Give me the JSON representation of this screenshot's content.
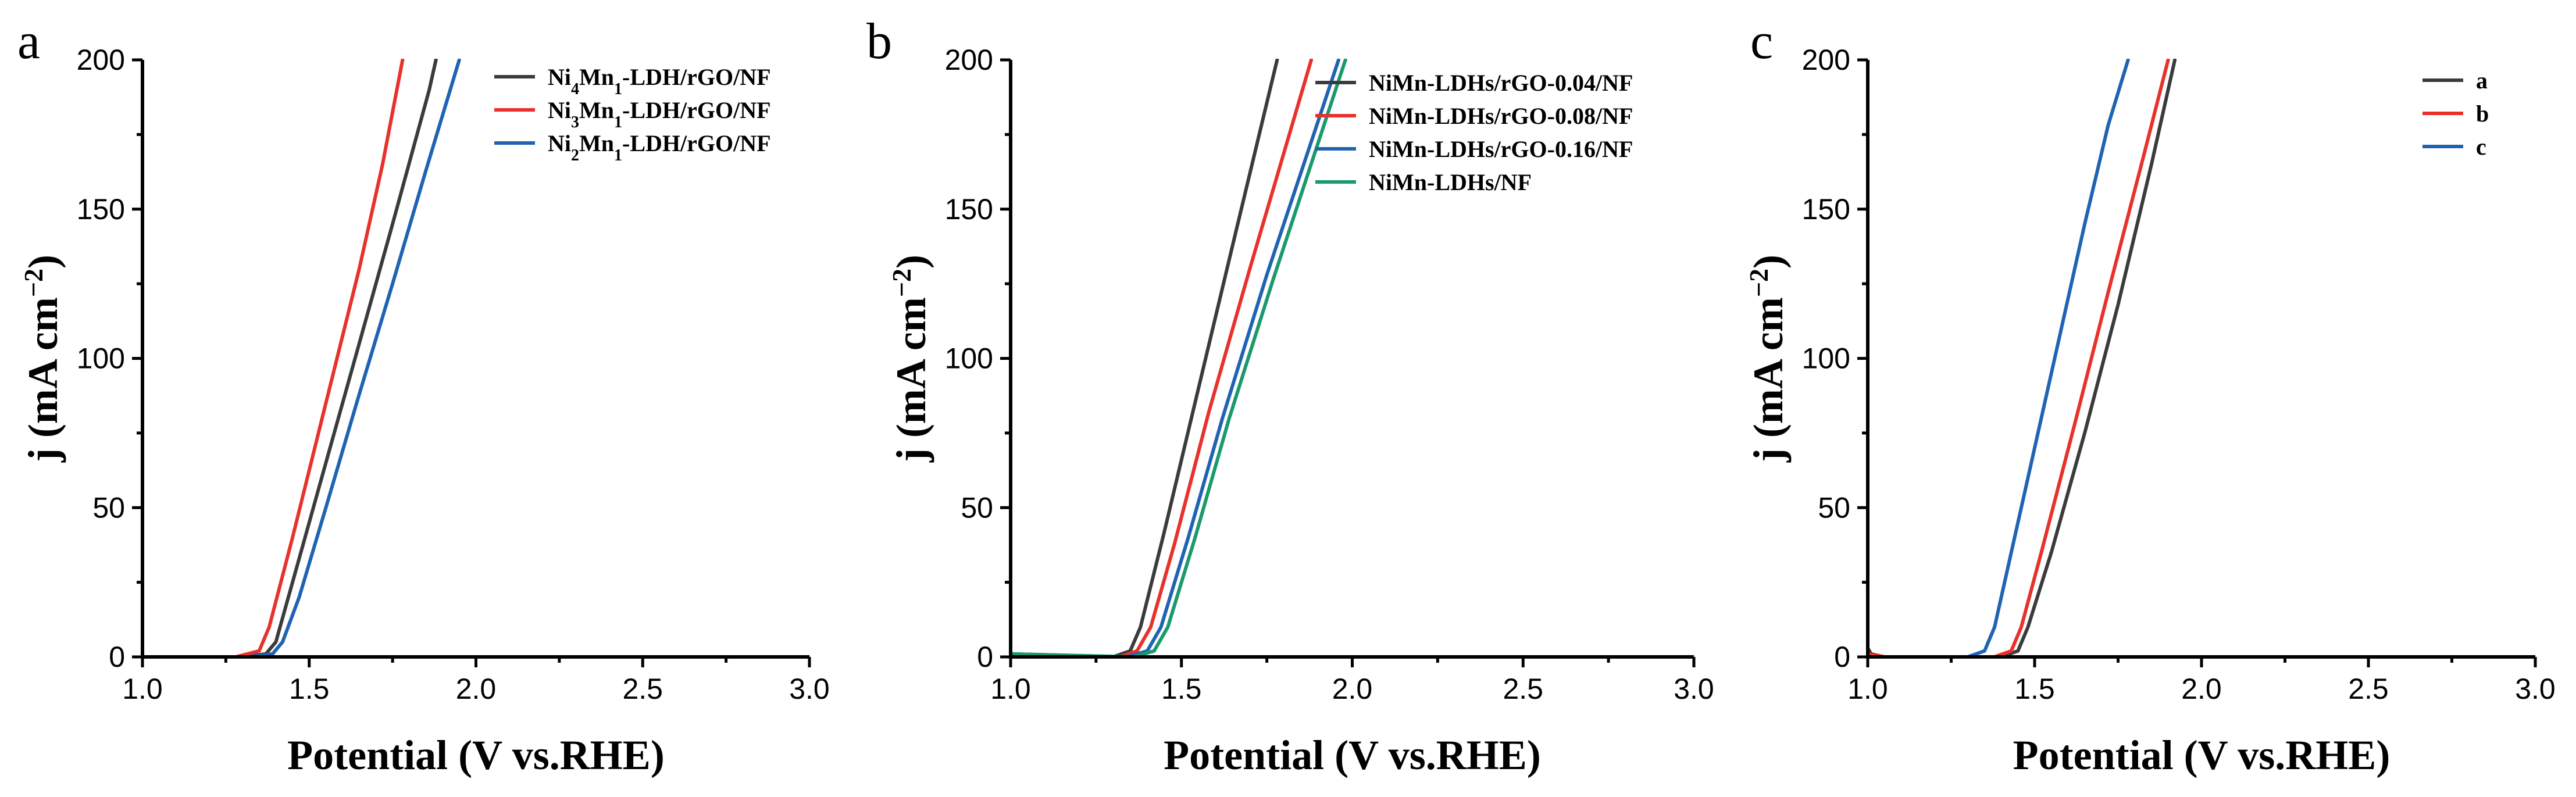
{
  "chart_data": [
    {
      "type": "line",
      "panel_label": "a",
      "xlabel": "Potential (V vs.RHE)",
      "ylabel": "j (mA cm",
      "ylabel_sup": "−2",
      "ylabel_close": ")",
      "xlim": [
        1.0,
        3.0
      ],
      "ylim": [
        0,
        200
      ],
      "xticks": [
        "1.0",
        "1.5",
        "2.0",
        "2.5",
        "3.0"
      ],
      "yticks": [
        "0",
        "50",
        "100",
        "150",
        "200"
      ],
      "legend_position": "top-right",
      "series": [
        {
          "name": "Ni4Mn1-LDH/rGO/NF",
          "label_parts": [
            "Ni",
            "4",
            "Mn",
            "1",
            "-LDH/rGO/NF"
          ],
          "color": "#3b3b3b",
          "x": [
            1.0,
            1.3,
            1.37,
            1.4,
            1.45,
            1.55,
            1.65,
            1.75,
            1.86,
            1.88
          ],
          "y": [
            0,
            0,
            1,
            5,
            25,
            65,
            105,
            145,
            190,
            200
          ]
        },
        {
          "name": "Ni3Mn1-LDH/rGO/NF",
          "label_parts": [
            "Ni",
            "3",
            "Mn",
            "1",
            "-LDH/rGO/NF"
          ],
          "color": "#e8312a",
          "x": [
            1.0,
            1.28,
            1.35,
            1.38,
            1.45,
            1.55,
            1.65,
            1.72,
            1.78
          ],
          "y": [
            0,
            0,
            2,
            10,
            40,
            85,
            130,
            165,
            200
          ]
        },
        {
          "name": "Ni2Mn1-LDH/rGO/NF",
          "label_parts": [
            "Ni",
            "2",
            "Mn",
            "1",
            "-LDH/rGO/NF"
          ],
          "color": "#1f63b3",
          "x": [
            1.0,
            1.32,
            1.39,
            1.42,
            1.47,
            1.55,
            1.65,
            1.75,
            1.85,
            1.95
          ],
          "y": [
            0,
            0,
            1,
            5,
            20,
            50,
            88,
            125,
            163,
            200
          ]
        }
      ]
    },
    {
      "type": "line",
      "panel_label": "b",
      "xlabel": "Potential (V vs.RHE)",
      "ylabel": "j (mA cm",
      "ylabel_sup": "−2",
      "ylabel_close": ")",
      "xlim": [
        1.0,
        3.0
      ],
      "ylim": [
        0,
        200
      ],
      "xticks": [
        "1.0",
        "1.5",
        "2.0",
        "2.5",
        "3.0"
      ],
      "yticks": [
        "0",
        "50",
        "100",
        "150",
        "200"
      ],
      "legend_position": "top-right",
      "series": [
        {
          "name": "NiMn-LDHs/rGO-0.04/NF",
          "label_parts": [
            "NiMn-LDHs/rGO-0.04/NF"
          ],
          "color": "#3b3b3b",
          "x": [
            1.0,
            1.3,
            1.35,
            1.38,
            1.45,
            1.55,
            1.65,
            1.78
          ],
          "y": [
            1,
            0,
            2,
            10,
            42,
            90,
            138,
            200
          ]
        },
        {
          "name": "NiMn-LDHs/rGO-0.08/NF",
          "label_parts": [
            "NiMn-LDHs/rGO-0.08/NF"
          ],
          "color": "#e8312a",
          "x": [
            1.0,
            1.32,
            1.37,
            1.41,
            1.48,
            1.58,
            1.7,
            1.88
          ],
          "y": [
            1,
            0,
            2,
            10,
            38,
            82,
            130,
            200
          ]
        },
        {
          "name": "NiMn-LDHs/rGO-0.16/NF",
          "label_parts": [
            "NiMn-LDHs/rGO-0.16/NF"
          ],
          "color": "#1f63b3",
          "x": [
            1.0,
            1.34,
            1.4,
            1.44,
            1.52,
            1.62,
            1.75,
            1.96
          ],
          "y": [
            1,
            0,
            2,
            10,
            40,
            80,
            128,
            200
          ]
        },
        {
          "name": "NiMn-LDHs/NF",
          "label_parts": [
            "NiMn-LDHs/NF"
          ],
          "color": "#1a9a6c",
          "x": [
            1.0,
            1.36,
            1.42,
            1.46,
            1.54,
            1.64,
            1.77,
            1.98
          ],
          "y": [
            1,
            0,
            2,
            10,
            40,
            80,
            127,
            200
          ]
        }
      ]
    },
    {
      "type": "line",
      "panel_label": "c",
      "xlabel": "Potential (V vs.RHE)",
      "ylabel": "j (mA cm",
      "ylabel_sup": "−2",
      "ylabel_close": ")",
      "xlim": [
        1.0,
        3.0
      ],
      "ylim": [
        0,
        200
      ],
      "xticks": [
        "1.0",
        "1.5",
        "2.0",
        "2.5",
        "3.0"
      ],
      "yticks": [
        "0",
        "50",
        "100",
        "150",
        "200"
      ],
      "legend_position": "top-right",
      "series": [
        {
          "name": "a",
          "label_parts": [
            "a"
          ],
          "color": "#3b3b3b",
          "x": [
            1.0,
            1.01,
            1.05,
            1.4,
            1.45,
            1.48,
            1.55,
            1.65,
            1.75,
            1.85,
            1.92
          ],
          "y": [
            3,
            1,
            0,
            0,
            2,
            10,
            35,
            75,
            118,
            165,
            200
          ]
        },
        {
          "name": "b",
          "label_parts": [
            "b"
          ],
          "color": "#e8312a",
          "x": [
            1.0,
            1.05,
            1.38,
            1.43,
            1.46,
            1.52,
            1.62,
            1.72,
            1.82,
            1.9
          ],
          "y": [
            1,
            0,
            0,
            2,
            10,
            35,
            78,
            122,
            165,
            200
          ]
        },
        {
          "name": "c",
          "label_parts": [
            "c"
          ],
          "color": "#1f63b3",
          "x": [
            1.0,
            1.05,
            1.3,
            1.35,
            1.38,
            1.45,
            1.55,
            1.65,
            1.72,
            1.78
          ],
          "y": [
            0,
            0,
            0,
            2,
            10,
            45,
            95,
            145,
            178,
            200
          ]
        }
      ]
    }
  ]
}
